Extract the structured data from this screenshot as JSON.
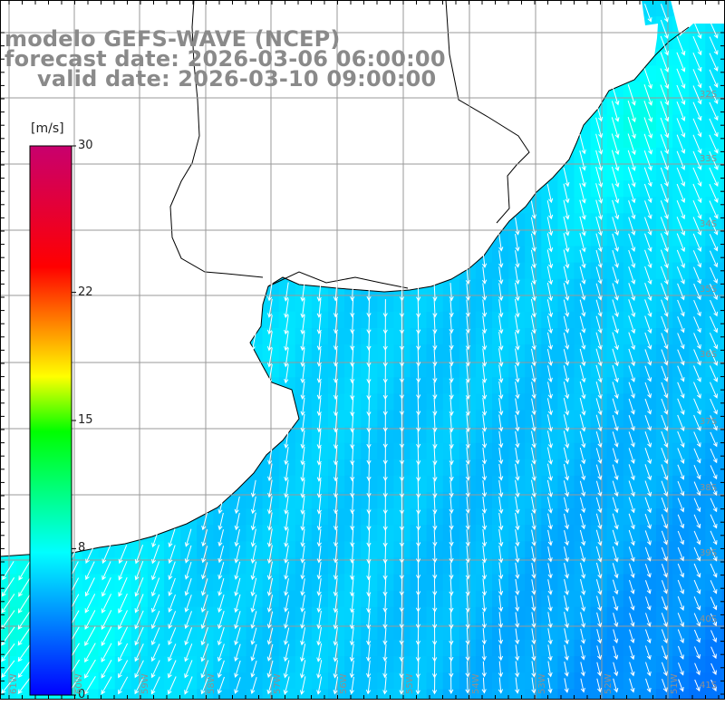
{
  "title": {
    "line1": "modelo GEFS-WAVE (NCEP)",
    "line2": "forecast date: 2026-03-06 06:00:00",
    "line3": "valid date: 2026-03-10 09:00:00"
  },
  "colorbar": {
    "unit": "[m/s]",
    "ticks": [
      "30",
      "22",
      "15",
      "8",
      "0"
    ],
    "tick_values": [
      30,
      22,
      15,
      8,
      0
    ],
    "min": 0,
    "max": 30,
    "colors": [
      "#0000ff",
      "#00ffff",
      "#00ff00",
      "#ffff00",
      "#ff0000",
      "#c8006e"
    ]
  },
  "axes": {
    "lat_labels": [
      "32S",
      "33S",
      "34S",
      "35S",
      "36S",
      "37S",
      "38S",
      "39S",
      "40S",
      "41S"
    ],
    "lon_labels": [
      "61W",
      "60W",
      "59W",
      "58W",
      "57W",
      "56W",
      "55W",
      "54W",
      "53W",
      "52W",
      "51W"
    ]
  },
  "map": {
    "land_color": "#ffffff",
    "coast_color": "#000000",
    "grid_color": "#a0a0a0",
    "field": "wind speed with direction arrows"
  }
}
